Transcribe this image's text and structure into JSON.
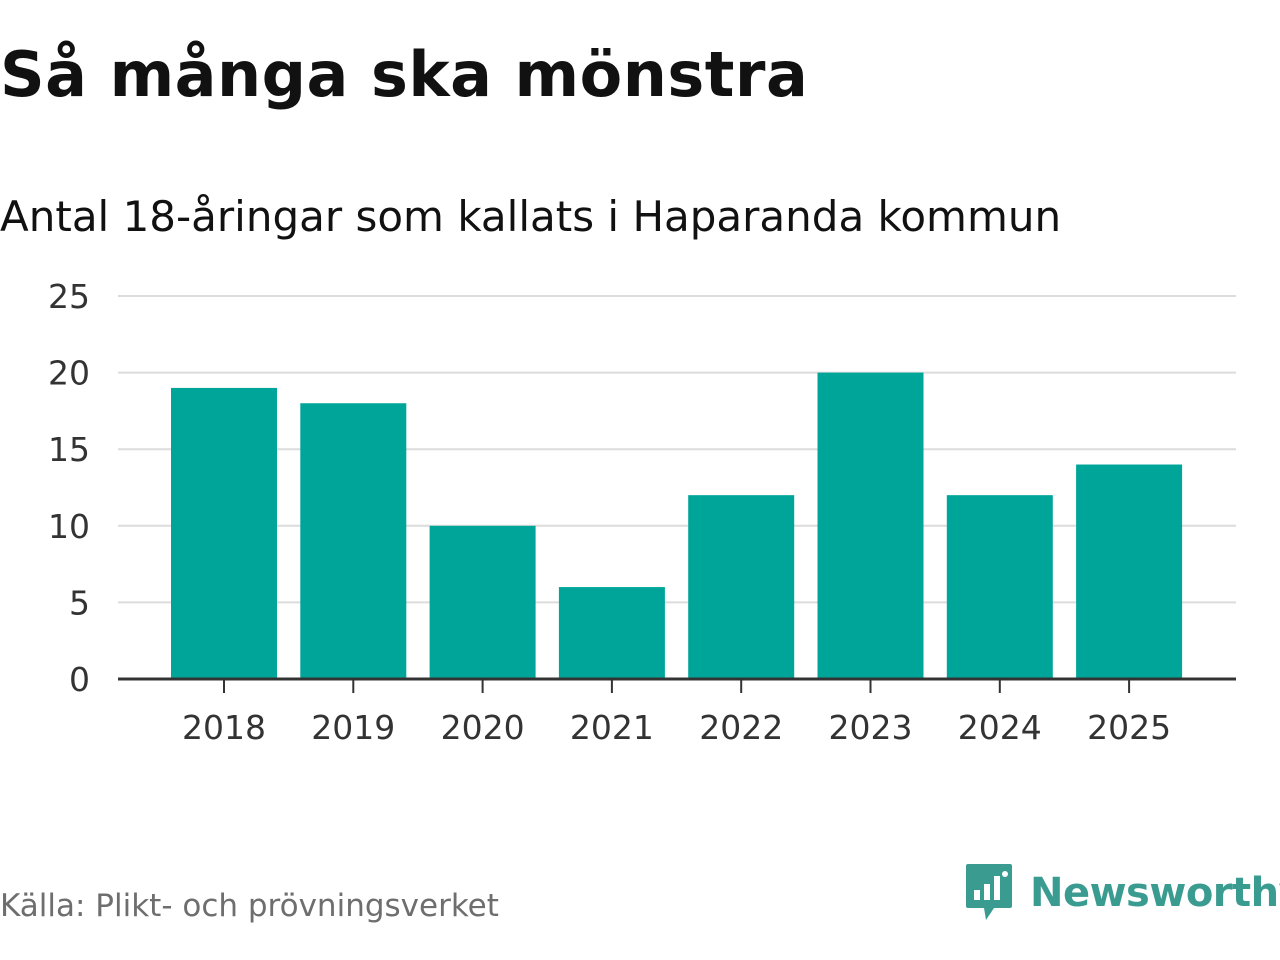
{
  "title": "Så många ska mönstra",
  "subtitle": "Antal 18-åringar som kallats i Haparanda kommun",
  "source": "Källa: Plikt- och prövningsverket",
  "brand": {
    "name": "Newsworthy",
    "icon": "newsworthy-logo-icon",
    "color": "#3a9c90"
  },
  "chart_data": {
    "type": "bar",
    "categories": [
      "2018",
      "2019",
      "2020",
      "2021",
      "2022",
      "2023",
      "2024",
      "2025"
    ],
    "values": [
      19,
      18,
      10,
      6,
      12,
      20,
      12,
      14
    ],
    "ylim": [
      0,
      25
    ],
    "yticks": [
      0,
      5,
      10,
      15,
      20,
      25
    ],
    "grid": true,
    "bar_color": "#00a59a"
  }
}
